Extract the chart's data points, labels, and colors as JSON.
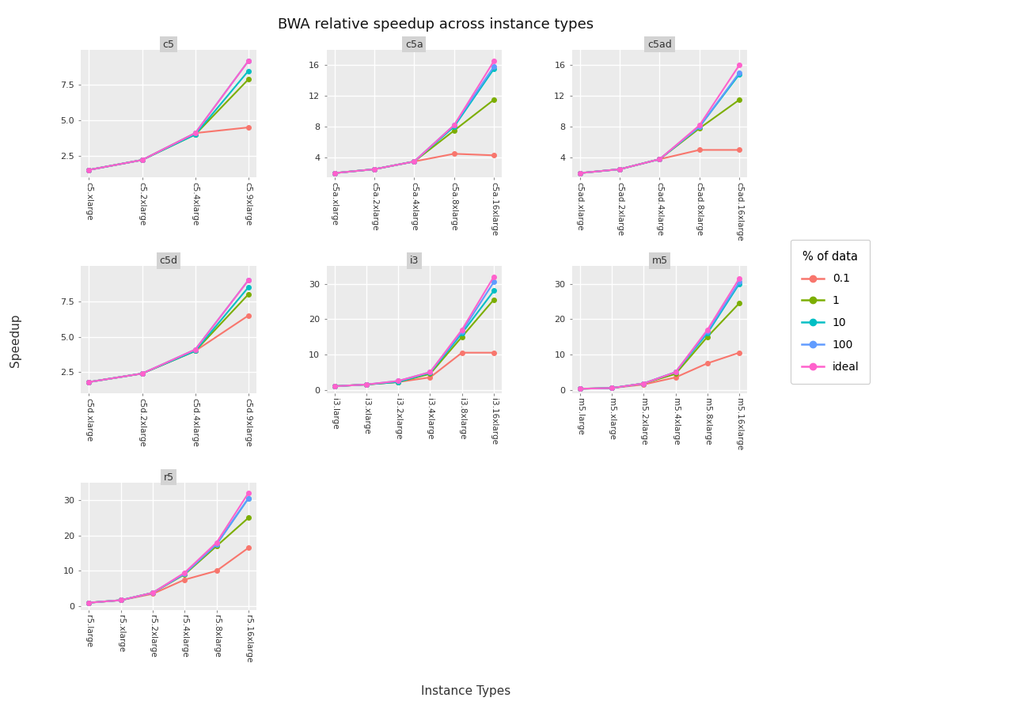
{
  "title": "BWA relative speedup across instance types",
  "xlabel": "Instance Types",
  "ylabel": "Speedup",
  "legend_title": "% of data",
  "series": [
    "0.1",
    "1",
    "10",
    "100",
    "ideal"
  ],
  "colors": [
    "#F8766D",
    "#7CAE00",
    "#00BFC4",
    "#619CFF",
    "#FF61CC"
  ],
  "subplots": {
    "c5": {
      "instances": [
        "c5.xlarge",
        "c5.2xlarge",
        "c5.4xlarge",
        "c5.9xlarge"
      ],
      "data": {
        "0.1": [
          1.5,
          2.2,
          4.1,
          4.5
        ],
        "1": [
          1.5,
          2.2,
          4.0,
          7.9
        ],
        "10": [
          1.5,
          2.2,
          4.0,
          8.5
        ],
        "100": [
          1.5,
          2.2,
          4.1,
          9.2
        ],
        "ideal": [
          1.5,
          2.2,
          4.1,
          9.2
        ]
      },
      "yticks": [
        2.5,
        5.0,
        7.5
      ],
      "ylim": [
        1.0,
        10.0
      ]
    },
    "c5a": {
      "instances": [
        "c5a.xlarge",
        "c5a.2xlarge",
        "c5a.4xlarge",
        "c5a.8xlarge",
        "c5a.16xlarge"
      ],
      "data": {
        "0.1": [
          2.0,
          2.5,
          3.5,
          4.5,
          4.3
        ],
        "1": [
          2.0,
          2.5,
          3.5,
          7.5,
          11.5
        ],
        "10": [
          2.0,
          2.5,
          3.5,
          8.0,
          15.5
        ],
        "100": [
          2.0,
          2.5,
          3.5,
          8.2,
          15.8
        ],
        "ideal": [
          2.0,
          2.5,
          3.5,
          8.2,
          16.5
        ]
      },
      "yticks": [
        4,
        8,
        12,
        16
      ],
      "ylim": [
        1.5,
        18.0
      ]
    },
    "c5ad": {
      "instances": [
        "c5ad.xlarge",
        "c5ad.2xlarge",
        "c5ad.4xlarge",
        "c5ad.8xlarge",
        "c5ad.16xlarge"
      ],
      "data": {
        "0.1": [
          2.0,
          2.5,
          3.8,
          5.0,
          5.0
        ],
        "1": [
          2.0,
          2.5,
          3.8,
          7.8,
          11.5
        ],
        "10": [
          2.0,
          2.5,
          3.8,
          8.0,
          14.8
        ],
        "100": [
          2.0,
          2.5,
          3.8,
          8.0,
          15.0
        ],
        "ideal": [
          2.0,
          2.5,
          3.8,
          8.2,
          16.0
        ]
      },
      "yticks": [
        4,
        8,
        12,
        16
      ],
      "ylim": [
        1.5,
        18.0
      ]
    },
    "c5d": {
      "instances": [
        "c5d.xlarge",
        "c5d.2xlarge",
        "c5d.4xlarge",
        "c5d.9xlarge"
      ],
      "data": {
        "0.1": [
          1.8,
          2.4,
          4.0,
          6.5
        ],
        "1": [
          1.8,
          2.4,
          4.0,
          8.0
        ],
        "10": [
          1.8,
          2.4,
          4.0,
          8.5
        ],
        "100": [
          1.8,
          2.4,
          4.1,
          9.0
        ],
        "ideal": [
          1.8,
          2.4,
          4.1,
          9.0
        ]
      },
      "yticks": [
        2.5,
        5.0,
        7.5
      ],
      "ylim": [
        1.0,
        10.0
      ]
    },
    "i3": {
      "instances": [
        "i3.large",
        "i3.xlarge",
        "i3.2xlarge",
        "i3.4xlarge",
        "i3.8xlarge",
        "i3.16xlarge"
      ],
      "data": {
        "0.1": [
          1.0,
          1.5,
          2.2,
          3.5,
          10.5,
          10.5
        ],
        "1": [
          1.0,
          1.5,
          2.2,
          4.5,
          15.0,
          25.5
        ],
        "10": [
          1.0,
          1.5,
          2.2,
          4.8,
          16.0,
          28.0
        ],
        "100": [
          1.0,
          1.5,
          2.5,
          5.0,
          16.5,
          30.5
        ],
        "ideal": [
          1.0,
          1.5,
          2.5,
          5.0,
          17.0,
          32.0
        ]
      },
      "yticks": [
        0,
        10,
        20,
        30
      ],
      "ylim": [
        -1.0,
        35.0
      ]
    },
    "m5": {
      "instances": [
        "m5.large",
        "m5.xlarge",
        "m5.2xlarge",
        "m5.4xlarge",
        "m5.8xlarge",
        "m5.16xlarge"
      ],
      "data": {
        "0.1": [
          0.3,
          0.5,
          1.5,
          3.5,
          7.5,
          10.5
        ],
        "1": [
          0.3,
          0.5,
          1.8,
          4.5,
          15.0,
          24.5
        ],
        "10": [
          0.3,
          0.5,
          1.8,
          5.0,
          16.0,
          30.0
        ],
        "100": [
          0.3,
          0.5,
          1.8,
          5.0,
          16.5,
          30.5
        ],
        "ideal": [
          0.3,
          0.5,
          1.8,
          5.0,
          17.0,
          31.5
        ]
      },
      "yticks": [
        0,
        10,
        20,
        30
      ],
      "ylim": [
        -1.0,
        35.0
      ]
    },
    "r5": {
      "instances": [
        "r5.large",
        "r5.xlarge",
        "r5.2xlarge",
        "r5.4xlarge",
        "r5.8xlarge",
        "r5.16xlarge"
      ],
      "data": {
        "0.1": [
          1.0,
          1.7,
          3.5,
          7.5,
          10.0,
          16.5
        ],
        "1": [
          1.0,
          1.7,
          3.8,
          9.0,
          17.0,
          25.0
        ],
        "10": [
          1.0,
          1.7,
          3.8,
          9.2,
          17.5,
          30.5
        ],
        "100": [
          1.0,
          1.7,
          3.8,
          9.2,
          17.5,
          30.5
        ],
        "ideal": [
          1.0,
          1.7,
          3.8,
          9.5,
          18.0,
          32.0
        ]
      },
      "yticks": [
        0,
        10,
        20,
        30
      ],
      "ylim": [
        -1.0,
        35.0
      ]
    }
  },
  "subplot_order": [
    "c5",
    "c5a",
    "c5ad",
    "c5d",
    "i3",
    "m5",
    "r5"
  ],
  "bg_color": "#EBEBEB",
  "grid_color": "white",
  "strip_color": "#D3D3D3"
}
